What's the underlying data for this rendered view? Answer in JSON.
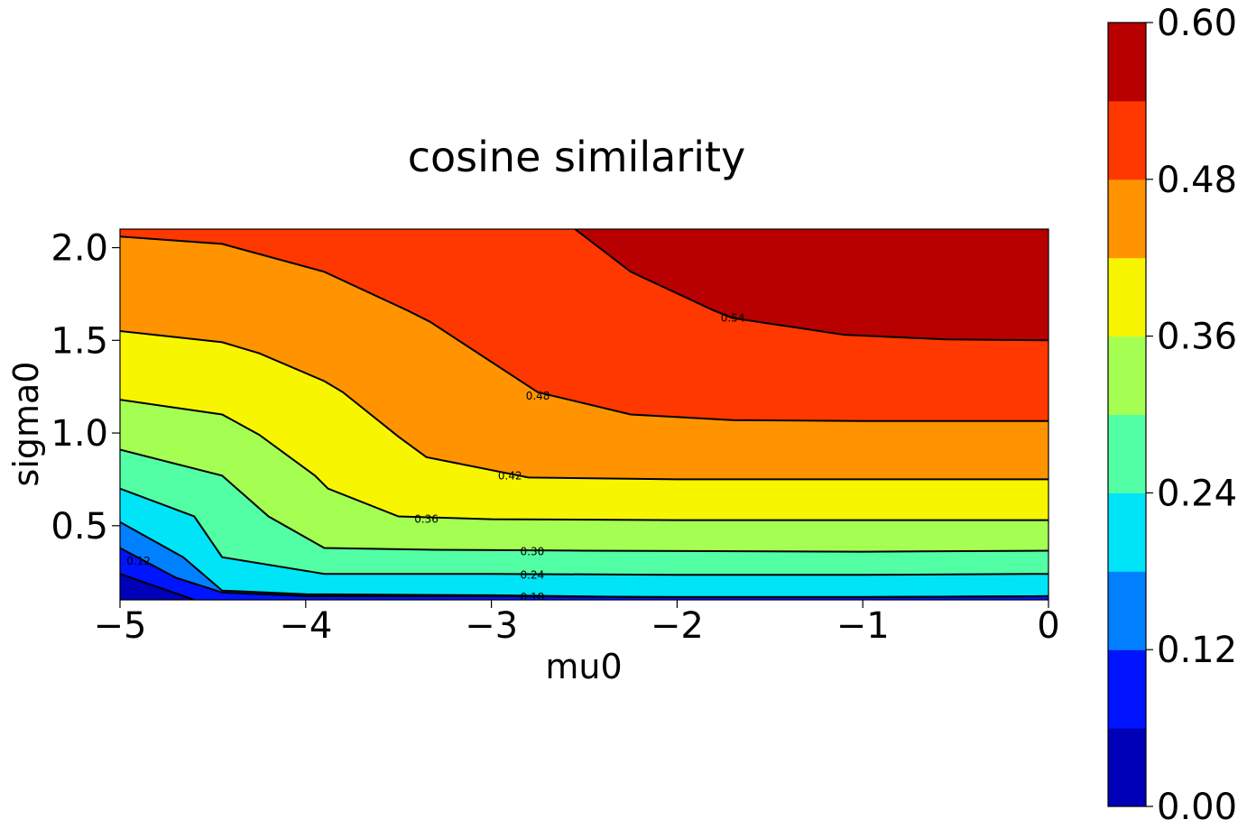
{
  "chart_data": {
    "type": "contour",
    "title": "cosine similarity",
    "xlabel": "mu0",
    "ylabel": "sigma0",
    "xlim": [
      -5,
      0
    ],
    "ylim": [
      0.1,
      2.1
    ],
    "x_ticks": [
      -5,
      -4,
      -3,
      -2,
      -1,
      0
    ],
    "x_tick_labels": [
      "−5",
      "−4",
      "−3",
      "−2",
      "−1",
      "0"
    ],
    "y_ticks": [
      0.5,
      1.0,
      1.5,
      2.0
    ],
    "y_tick_labels": [
      "0.5",
      "1.0",
      "1.5",
      "2.0"
    ],
    "colormap": "jet",
    "levels": [
      0.0,
      0.06,
      0.12,
      0.18,
      0.24,
      0.3,
      0.36,
      0.42,
      0.48,
      0.54,
      0.6
    ],
    "level_colors": [
      "#0000b8",
      "#0014ff",
      "#0080ff",
      "#00e4f8",
      "#52ffa5",
      "#a5ff52",
      "#f8f500",
      "#ff9400",
      "#ff3800",
      "#b80000"
    ],
    "colorbar_ticks": [
      0.0,
      0.12,
      0.24,
      0.36,
      0.48,
      0.6
    ],
    "colorbar_tick_labels": [
      "0.00",
      "0.12",
      "0.24",
      "0.36",
      "0.48",
      "0.60"
    ],
    "grid": false,
    "contour_lines": [
      {
        "level": 0.06,
        "label": "0.06",
        "show_label": false,
        "points": [
          [
            -5,
            0.24
          ],
          [
            -4.6,
            0.1
          ]
        ]
      },
      {
        "level": 0.12,
        "label": "0.12",
        "show_label": true,
        "label_at": [
          -4.9,
          0.31
        ],
        "points": [
          [
            -5,
            0.38
          ],
          [
            -4.7,
            0.22
          ],
          [
            -4.45,
            0.14
          ],
          [
            -4.0,
            0.12
          ],
          [
            -3.0,
            0.12
          ],
          [
            -2.0,
            0.115
          ],
          [
            -1.0,
            0.115
          ],
          [
            0,
            0.12
          ]
        ]
      },
      {
        "level": 0.18,
        "label": "0.18",
        "show_label": true,
        "label_at": [
          -2.78,
          0.115
        ],
        "points": [
          [
            -5,
            0.52
          ],
          [
            -4.66,
            0.33
          ],
          [
            -4.45,
            0.15
          ],
          [
            -4.0,
            0.13
          ],
          [
            -3.0,
            0.125
          ],
          [
            -2.2,
            0.115
          ],
          [
            -1.0,
            0.115
          ],
          [
            0,
            0.12
          ]
        ]
      },
      {
        "level": 0.24,
        "label": "0.24",
        "show_label": true,
        "label_at": [
          -2.78,
          0.235
        ],
        "points": [
          [
            -5,
            0.7
          ],
          [
            -4.6,
            0.55
          ],
          [
            -4.45,
            0.33
          ],
          [
            -3.9,
            0.24
          ],
          [
            -3.0,
            0.24
          ],
          [
            -2.0,
            0.235
          ],
          [
            -1.0,
            0.235
          ],
          [
            0,
            0.24
          ]
        ]
      },
      {
        "level": 0.3,
        "label": "0.30",
        "show_label": true,
        "label_at": [
          -2.78,
          0.36
        ],
        "points": [
          [
            -5,
            0.91
          ],
          [
            -4.45,
            0.77
          ],
          [
            -4.2,
            0.55
          ],
          [
            -3.9,
            0.38
          ],
          [
            -3.3,
            0.37
          ],
          [
            -2.5,
            0.365
          ],
          [
            -1.0,
            0.36
          ],
          [
            0,
            0.365
          ]
        ]
      },
      {
        "level": 0.36,
        "label": "0.36",
        "show_label": true,
        "label_at": [
          -3.35,
          0.535
        ],
        "points": [
          [
            -5,
            1.18
          ],
          [
            -4.45,
            1.1
          ],
          [
            -4.25,
            0.99
          ],
          [
            -3.95,
            0.77
          ],
          [
            -3.88,
            0.7
          ],
          [
            -3.5,
            0.55
          ],
          [
            -3.0,
            0.535
          ],
          [
            -2.0,
            0.53
          ],
          [
            -1.0,
            0.53
          ],
          [
            0,
            0.53
          ]
        ]
      },
      {
        "level": 0.42,
        "label": "0.42",
        "show_label": true,
        "label_at": [
          -2.9,
          0.77
        ],
        "points": [
          [
            -5,
            1.55
          ],
          [
            -4.45,
            1.49
          ],
          [
            -4.25,
            1.43
          ],
          [
            -3.9,
            1.28
          ],
          [
            -3.8,
            1.22
          ],
          [
            -3.5,
            0.98
          ],
          [
            -3.35,
            0.87
          ],
          [
            -2.8,
            0.76
          ],
          [
            -2.0,
            0.75
          ],
          [
            -1.0,
            0.75
          ],
          [
            0,
            0.75
          ]
        ]
      },
      {
        "level": 0.48,
        "label": "0.48",
        "show_label": true,
        "label_at": [
          -2.75,
          1.2
        ],
        "points": [
          [
            -5,
            2.06
          ],
          [
            -4.45,
            2.02
          ],
          [
            -3.9,
            1.87
          ],
          [
            -3.45,
            1.66
          ],
          [
            -3.33,
            1.6
          ],
          [
            -2.75,
            1.22
          ],
          [
            -2.25,
            1.1
          ],
          [
            -1.7,
            1.07
          ],
          [
            -1.0,
            1.065
          ],
          [
            0,
            1.065
          ]
        ]
      },
      {
        "level": 0.54,
        "label": "0.54",
        "show_label": true,
        "label_at": [
          -1.7,
          1.62
        ],
        "points": [
          [
            -2.55,
            2.1
          ],
          [
            -2.25,
            1.87
          ],
          [
            -1.8,
            1.66
          ],
          [
            -1.7,
            1.62
          ],
          [
            -1.1,
            1.53
          ],
          [
            -0.55,
            1.505
          ],
          [
            0,
            1.5
          ]
        ]
      }
    ]
  }
}
